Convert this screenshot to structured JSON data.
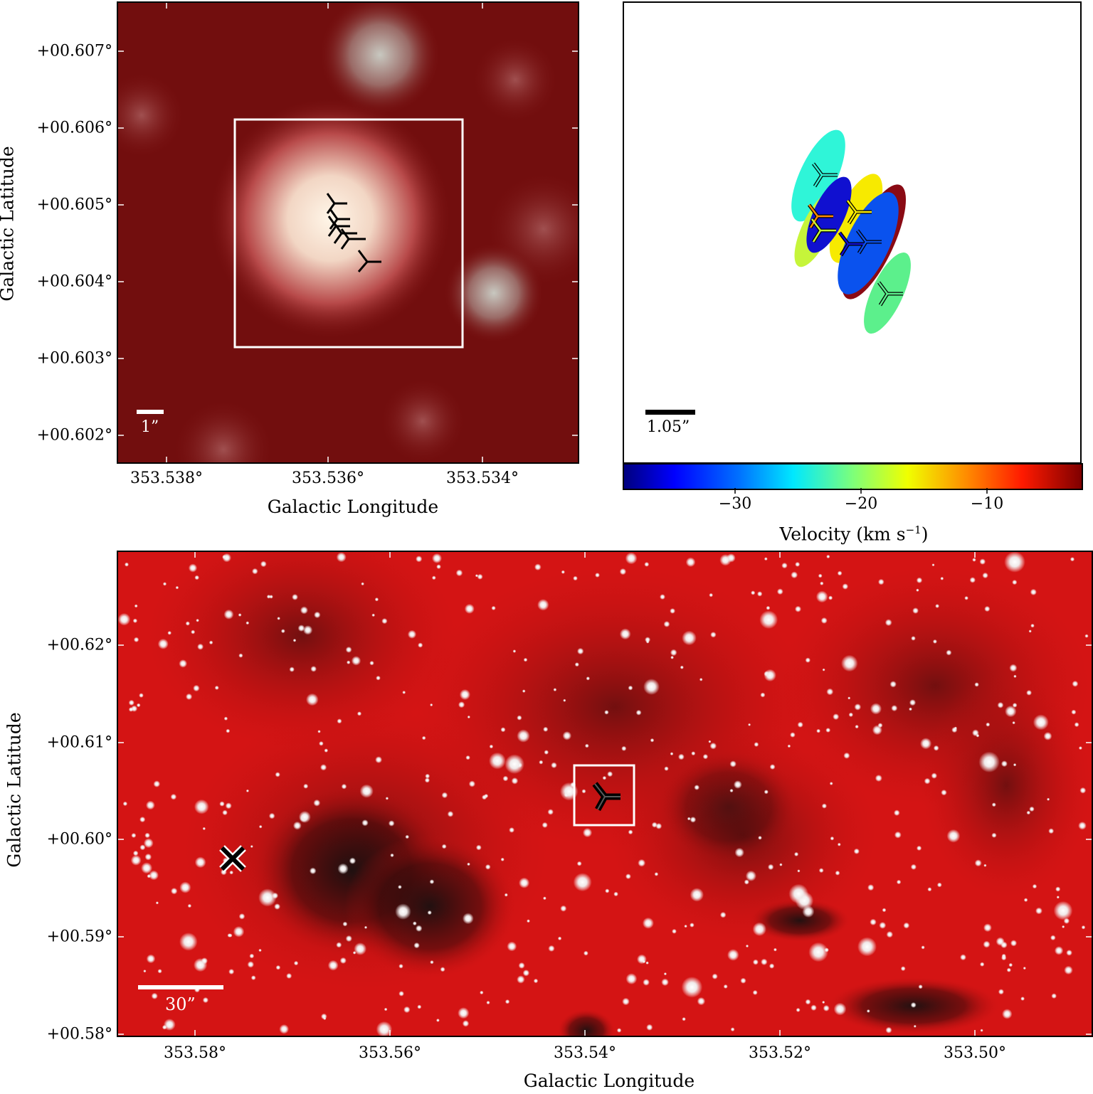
{
  "top_left": {
    "y_ticks": [
      "+00.607°",
      "+00.606°",
      "+00.605°",
      "+00.604°",
      "+00.603°",
      "+00.602°"
    ],
    "x_ticks": [
      "353.538°",
      "353.536°",
      "353.534°"
    ],
    "x_label": "Galactic Longitude",
    "y_label": "Galactic Latitude",
    "scale_label": "1”"
  },
  "top_right": {
    "scale_label": "1.05”",
    "colorbar_ticks": [
      "−30",
      "−20",
      "−10"
    ],
    "colorbar_label": "Velocity (km s",
    "colorbar_label_sup": "−1",
    "colorbar_label_end": ")",
    "colormap": [
      "#00007f",
      "#0000ff",
      "#007fff",
      "#00ffff",
      "#7fff7f",
      "#ffff00",
      "#ff7f00",
      "#ff0000",
      "#7f0000"
    ]
  },
  "bottom": {
    "y_ticks": [
      "+00.62°",
      "+00.61°",
      "+00.60°",
      "+00.59°",
      "+00.58°"
    ],
    "x_ticks": [
      "353.58°",
      "353.56°",
      "353.54°",
      "353.52°",
      "353.50°"
    ],
    "x_label": "Galactic Longitude",
    "y_label": "Galactic Latitude",
    "scale_label": "30”"
  }
}
